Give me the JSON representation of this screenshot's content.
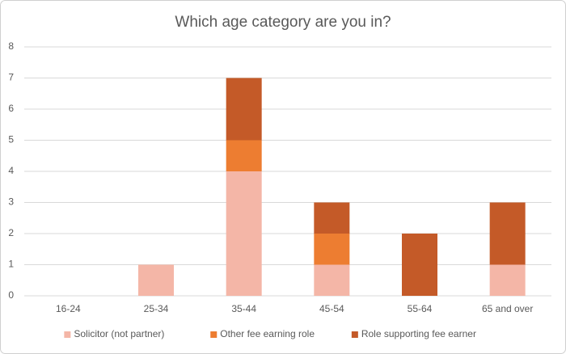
{
  "chart_data": {
    "type": "bar",
    "stacked": true,
    "title": "Which age category are you in?",
    "categories": [
      "16-24",
      "25-34",
      "35-44",
      "45-54",
      "55-64",
      "65 and over"
    ],
    "series": [
      {
        "name": "Solicitor (not partner)",
        "color": "#f4b6a7",
        "values": [
          0,
          1,
          4,
          1,
          0,
          1
        ]
      },
      {
        "name": "Other fee earning role",
        "color": "#ed7d31",
        "values": [
          0,
          0,
          1,
          1,
          0,
          0
        ]
      },
      {
        "name": "Role supporting fee earner",
        "color": "#c45a28",
        "values": [
          0,
          0,
          2,
          1,
          2,
          2
        ]
      }
    ],
    "ylim": [
      0,
      8
    ],
    "yticks": [
      0,
      1,
      2,
      3,
      4,
      5,
      6,
      7,
      8
    ],
    "grid": true,
    "legend": "bottom"
  }
}
